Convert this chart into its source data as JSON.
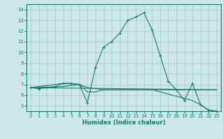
{
  "xlabel": "Humidex (Indice chaleur)",
  "bg_color": "#cce8e8",
  "grid_color": "#aacccc",
  "line_color": "#1a7868",
  "xlim": [
    -0.5,
    23.5
  ],
  "ylim": [
    4.5,
    14.5
  ],
  "yticks": [
    5,
    6,
    7,
    8,
    9,
    10,
    11,
    12,
    13,
    14
  ],
  "xticks": [
    0,
    1,
    2,
    3,
    4,
    5,
    6,
    7,
    8,
    9,
    10,
    11,
    12,
    13,
    14,
    15,
    16,
    17,
    18,
    19,
    20,
    21,
    22,
    23
  ],
  "main_curve_x": [
    0,
    1,
    2,
    3,
    4,
    5,
    6,
    7,
    8,
    9,
    10,
    11,
    12,
    13,
    14,
    15,
    16,
    17,
    18,
    19,
    20,
    21,
    22,
    23
  ],
  "main_curve_y": [
    6.7,
    6.6,
    6.7,
    6.8,
    7.1,
    7.1,
    7.0,
    5.3,
    8.6,
    10.5,
    11.0,
    11.8,
    13.0,
    13.3,
    13.7,
    12.1,
    9.7,
    7.3,
    6.5,
    5.5,
    7.1,
    5.1,
    4.6,
    4.5
  ],
  "line2_x": [
    0,
    23
  ],
  "line2_y": [
    6.7,
    6.5
  ],
  "line3_x": [
    0,
    4,
    6,
    7,
    9,
    15,
    20,
    23
  ],
  "line3_y": [
    6.7,
    6.8,
    7.0,
    6.7,
    6.5,
    6.5,
    6.5,
    6.5
  ],
  "line4_x": [
    0,
    4,
    6,
    7,
    8,
    9,
    15,
    20,
    21,
    22,
    23
  ],
  "line4_y": [
    6.7,
    7.1,
    7.0,
    6.3,
    6.3,
    6.5,
    6.5,
    5.5,
    5.1,
    4.6,
    4.5
  ]
}
